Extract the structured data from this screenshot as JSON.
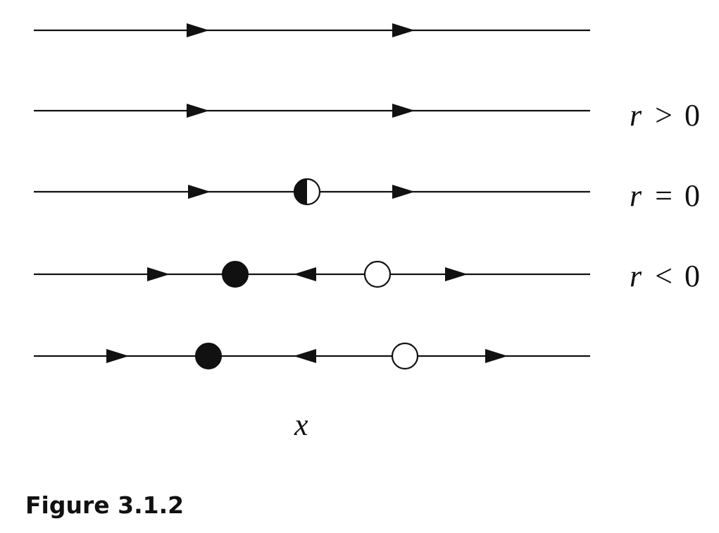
{
  "diagram": {
    "rows": [
      {
        "arrows": [
          "right",
          "right"
        ],
        "points": []
      },
      {
        "arrows": [
          "right",
          "right"
        ],
        "points": [],
        "label": {
          "var": "r",
          "rel": ">",
          "val": "0"
        }
      },
      {
        "arrows": [
          "right",
          "right"
        ],
        "points": [
          {
            "kind": "half-stable"
          }
        ],
        "label": {
          "var": "r",
          "rel": "=",
          "val": "0"
        }
      },
      {
        "arrows": [
          "right",
          "left",
          "right"
        ],
        "points": [
          {
            "kind": "stable"
          },
          {
            "kind": "unstable"
          }
        ],
        "label": {
          "var": "r",
          "rel": "<",
          "val": "0"
        }
      },
      {
        "arrows": [
          "right",
          "left",
          "right"
        ],
        "points": [
          {
            "kind": "stable"
          },
          {
            "kind": "unstable"
          }
        ]
      }
    ],
    "axis_label": "x",
    "caption": "Figure 3.1.2"
  }
}
